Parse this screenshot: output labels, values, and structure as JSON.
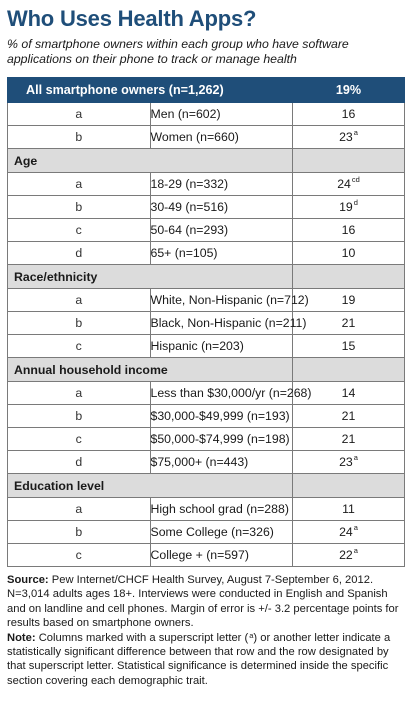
{
  "title": "Who Uses Health Apps?",
  "subtitle": "% of smartphone owners within each group who have software applications on their phone to track or manage health",
  "table": {
    "header": {
      "label": "All smartphone owners (n=1,262)",
      "value": "19%"
    },
    "sections": [
      {
        "rows": [
          {
            "letter": "a",
            "label": "Men (n=602)",
            "value": "16",
            "sup": ""
          },
          {
            "letter": "b",
            "label": "Women (n=660)",
            "value": "23",
            "sup": "a"
          }
        ]
      },
      {
        "heading": "Age",
        "rows": [
          {
            "letter": "a",
            "label": "18-29 (n=332)",
            "value": "24",
            "sup": "cd"
          },
          {
            "letter": "b",
            "label": "30-49 (n=516)",
            "value": "19",
            "sup": "d"
          },
          {
            "letter": "c",
            "label": "50-64 (n=293)",
            "value": "16",
            "sup": ""
          },
          {
            "letter": "d",
            "label": "65+ (n=105)",
            "value": "10",
            "sup": ""
          }
        ]
      },
      {
        "heading": "Race/ethnicity",
        "rows": [
          {
            "letter": "a",
            "label": "White, Non-Hispanic (n=712)",
            "value": "19",
            "sup": ""
          },
          {
            "letter": "b",
            "label": "Black, Non-Hispanic (n=211)",
            "value": "21",
            "sup": ""
          },
          {
            "letter": "c",
            "label": "Hispanic (n=203)",
            "value": "15",
            "sup": ""
          }
        ]
      },
      {
        "heading": "Annual household income",
        "rows": [
          {
            "letter": "a",
            "label": "Less than $30,000/yr (n=268)",
            "value": "14",
            "sup": ""
          },
          {
            "letter": "b",
            "label": "$30,000-$49,999 (n=193)",
            "value": "21",
            "sup": ""
          },
          {
            "letter": "c",
            "label": "$50,000-$74,999 (n=198)",
            "value": "21",
            "sup": ""
          },
          {
            "letter": "d",
            "label": "$75,000+ (n=443)",
            "value": "23",
            "sup": "a"
          }
        ]
      },
      {
        "heading": "Education level",
        "rows": [
          {
            "letter": "a",
            "label": "High school grad (n=288)",
            "value": "11",
            "sup": ""
          },
          {
            "letter": "b",
            "label": "Some College (n=326)",
            "value": "24",
            "sup": "a"
          },
          {
            "letter": "c",
            "label": "College + (n=597)",
            "value": "22",
            "sup": "a"
          }
        ]
      }
    ]
  },
  "source": {
    "label": "Source:",
    "text": " Pew Internet/CHCF Health Survey, August 7-September 6, 2012. N=3,014 adults ages 18+. Interviews were conducted in English and Spanish and on landline and cell phones.  Margin of error is +/- 3.2 percentage points for results based on smartphone owners."
  },
  "note": {
    "label": "Note:",
    "text_before": " Columns marked with a superscript letter (",
    "sup": "a",
    "text_after": ") or another letter indicate a statistically significant difference between that row and the row designated by that superscript letter. Statistical significance is determined inside the specific section covering each demographic trait."
  },
  "colors": {
    "title": "#1f4e79",
    "header_bg": "#1f4e79",
    "section_bg": "#dcdcdc"
  }
}
